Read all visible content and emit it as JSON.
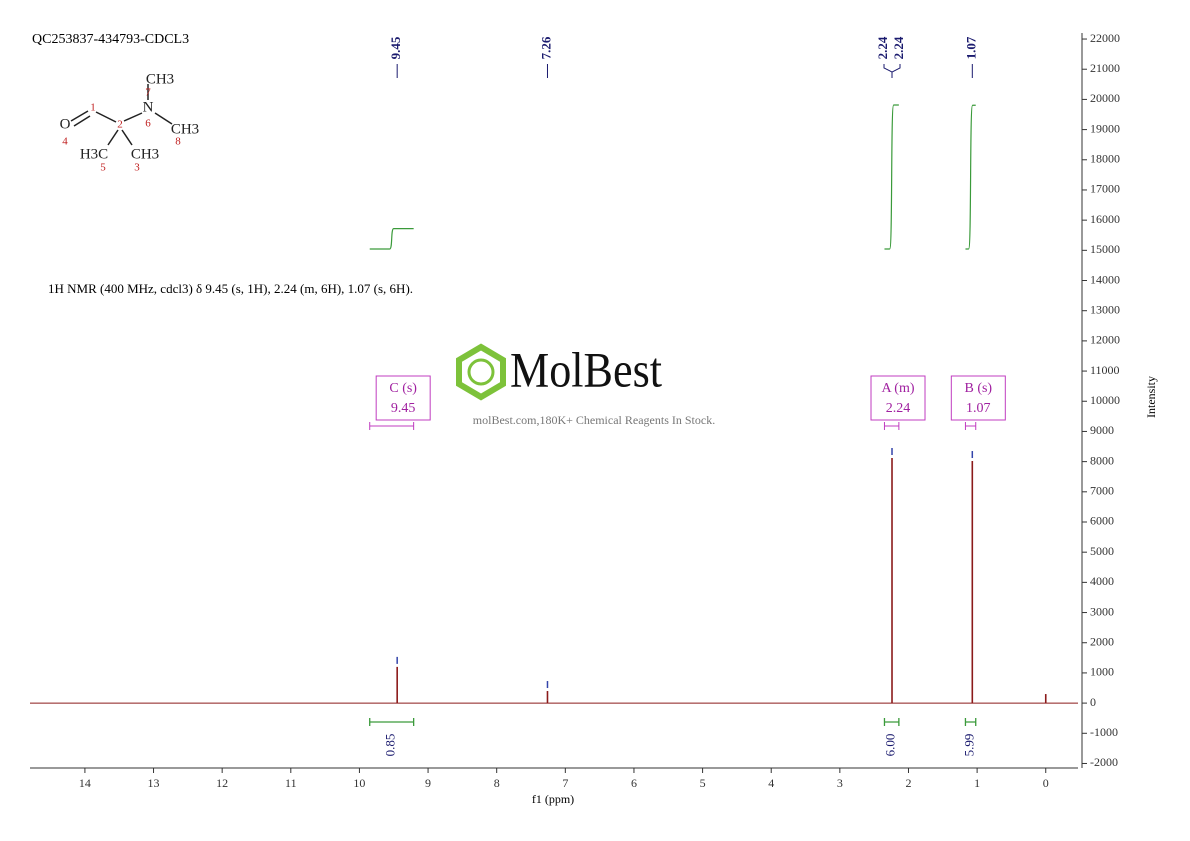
{
  "chart_data": {
    "type": "nmr",
    "title": "QC253837-434793-CDCL3",
    "description": "1H NMR (400 MHz, cdcl3) δ 9.45 (s, 1H), 2.24 (m, 6H), 1.07 (s, 6H).",
    "xlabel": "f1 (ppm)",
    "ylabel": "Intensity",
    "watermark": "MolBest",
    "watermark_tagline": "molBest.com,180K+ Chemical Reagents In Stock.",
    "xlim": [
      14.8,
      -0.47
    ],
    "xticks": [
      14,
      13,
      12,
      11,
      10,
      9,
      8,
      7,
      6,
      5,
      4,
      3,
      2,
      1,
      0
    ],
    "ylim": [
      -2150,
      22200
    ],
    "yticks": [
      -2000,
      -1000,
      0,
      1000,
      2000,
      3000,
      4000,
      5000,
      6000,
      7000,
      8000,
      9000,
      10000,
      11000,
      12000,
      13000,
      14000,
      15000,
      16000,
      17000,
      18000,
      19000,
      20000,
      21000,
      22000
    ],
    "peaks": {
      "x": [
        9.45,
        7.26,
        2.24,
        1.07,
        0
      ],
      "values": [
        1200,
        400,
        8120,
        8020,
        300
      ],
      "color": "#8b1a1a"
    },
    "peak_labels": [
      9.45,
      7.26,
      2.24,
      2.24,
      1.07
    ],
    "multiplets": {
      "names": [
        "C (s)",
        "A (m)",
        "B (s)"
      ],
      "shifts": [
        9.45,
        2.24,
        1.07
      ],
      "ranges": [
        [
          9.85,
          9.21
        ],
        [
          2.35,
          2.14
        ],
        [
          1.17,
          1.02
        ]
      ]
    },
    "integrals": {
      "ranges": [
        [
          9.85,
          9.21
        ],
        [
          2.35,
          2.14
        ],
        [
          1.17,
          1.02
        ]
      ],
      "values": [
        0.85,
        6,
        5.99
      ],
      "value_labels": [
        "0.85",
        "6.00",
        "5.99"
      ]
    },
    "structure": {
      "atom_labels": [
        "O",
        "N",
        "CH3",
        "CH3",
        "H3C",
        "CH3"
      ],
      "atom_numbers": [
        "1",
        "2",
        "3",
        "4",
        "5",
        "6",
        "7",
        "8"
      ]
    }
  }
}
